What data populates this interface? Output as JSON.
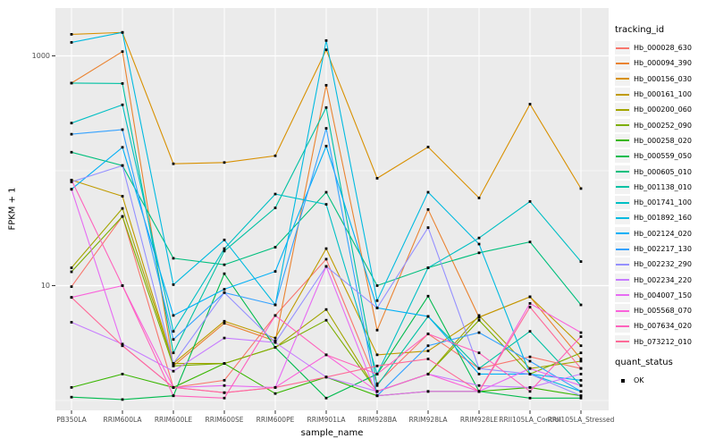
{
  "chart_data": {
    "type": "line",
    "xlabel": "sample_name",
    "ylabel": "FPKM + 1",
    "y_scale": "log10",
    "ylim": [
      0.82,
      2300
    ],
    "grid": true,
    "panel_bg": "#EBEBEB",
    "grid_color": "#FFFFFF",
    "point_color": "#000000",
    "y_ticks": [
      {
        "label": "1000",
        "value": 1000
      },
      {
        "label": "10",
        "value": 10
      }
    ],
    "y_minor": [
      100,
      1
    ],
    "categories": [
      "PB350LA",
      "RRIM600LA",
      "RRIM600LE",
      "RRIM600SE",
      "RRIM600PE",
      "RRIM901LA",
      "RRIM928BA",
      "RRIM928LA",
      "RRIM928LE",
      "RRII105LA_Control",
      "RRII105LA_Stressed"
    ],
    "legend": {
      "title": "tracking_id",
      "position": "right"
    },
    "legend2": {
      "title": "quant_status",
      "items": [
        {
          "label": "OK",
          "key": "black-square"
        }
      ]
    },
    "series": [
      {
        "name": "Hb_000028_630",
        "color": "#F8766D",
        "values": [
          9.8,
          40,
          1.3,
          1.5,
          5.5,
          17,
          1.4,
          3.8,
          1.9,
          2.4,
          1.9
        ]
      },
      {
        "name": "Hb_000094_390",
        "color": "#EA8331",
        "values": [
          580,
          1090,
          2.0,
          4.7,
          3.3,
          555,
          4.1,
          46,
          5.3,
          8.0,
          2.3
        ]
      },
      {
        "name": "Hb_000156_030",
        "color": "#D89000",
        "values": [
          1540,
          1600,
          115,
          118,
          135,
          1130,
          86,
          161,
          58,
          380,
          70
        ]
      },
      {
        "name": "Hb_000161_100",
        "color": "#C09B00",
        "values": [
          83,
          60,
          2.1,
          4.9,
          3.5,
          21,
          2.5,
          2.7,
          5.3,
          8.0,
          3.0
        ]
      },
      {
        "name": "Hb_000200_060",
        "color": "#A3A500",
        "values": [
          14.3,
          47,
          2.1,
          2.1,
          2.9,
          6.2,
          1.2,
          1.7,
          5.5,
          1.9,
          2.2
        ]
      },
      {
        "name": "Hb_000252_090",
        "color": "#7CAE00",
        "values": [
          13.2,
          40,
          2.0,
          2.1,
          2.9,
          5.0,
          1.2,
          1.7,
          5.0,
          1.7,
          2.6
        ]
      },
      {
        "name": "Hb_000258_020",
        "color": "#39B600",
        "values": [
          1.3,
          1.7,
          1.3,
          2.1,
          1.15,
          1.6,
          1.1,
          1.2,
          1.2,
          1.3,
          1.1
        ]
      },
      {
        "name": "Hb_000559_050",
        "color": "#00BB4E",
        "values": [
          1.07,
          1.02,
          1.1,
          12.7,
          2.9,
          1.05,
          1.7,
          8.1,
          1.2,
          1.05,
          1.05
        ]
      },
      {
        "name": "Hb_000605_010",
        "color": "#00BF7D",
        "values": [
          145,
          111,
          17.3,
          15.2,
          21.6,
          65,
          10,
          14.3,
          19.3,
          24,
          6.8
        ]
      },
      {
        "name": "Hb_001138_010",
        "color": "#00C1A3",
        "values": [
          580,
          575,
          2.6,
          20,
          47.5,
          355,
          1.35,
          5.4,
          1.9,
          4.0,
          1.35
        ]
      },
      {
        "name": "Hb_001741_100",
        "color": "#00BFC4",
        "values": [
          260,
          375,
          4.0,
          21,
          62.7,
          51,
          1.7,
          14.3,
          26,
          54,
          16.2
        ]
      },
      {
        "name": "Hb_001892_160",
        "color": "#00BAE0",
        "values": [
          1310,
          1600,
          10.2,
          25,
          6.8,
          1360,
          7.4,
          65,
          23,
          1.7,
          1.2
        ]
      },
      {
        "name": "Hb_002124_020",
        "color": "#00B0F6",
        "values": [
          69,
          160,
          5.5,
          9.3,
          13.3,
          164,
          6.4,
          5.4,
          1.7,
          1.7,
          1.5
        ]
      },
      {
        "name": "Hb_002217_130",
        "color": "#35A2FF",
        "values": [
          208,
          228,
          3.4,
          8.7,
          6.8,
          234,
          1.1,
          3.0,
          3.9,
          2.2,
          1.2
        ]
      },
      {
        "name": "Hb_002232_290",
        "color": "#9590FF",
        "values": [
          80,
          111,
          2.1,
          8.7,
          3.2,
          14.7,
          6.4,
          32,
          1.9,
          1.7,
          1.1
        ]
      },
      {
        "name": "Hb_002234_220",
        "color": "#C77CFF",
        "values": [
          4.8,
          3.1,
          1.8,
          3.5,
          3.2,
          1.6,
          1.2,
          1.7,
          1.35,
          1.3,
          1.7
        ]
      },
      {
        "name": "Hb_004007_150",
        "color": "#E76BF3",
        "values": [
          69,
          3.0,
          1.3,
          1.35,
          1.3,
          14.7,
          1.1,
          1.2,
          1.2,
          1.9,
          1.35
        ]
      },
      {
        "name": "Hb_005568_070",
        "color": "#FA62DB",
        "values": [
          7.9,
          10,
          1.3,
          1.17,
          1.3,
          2.5,
          1.2,
          1.7,
          1.2,
          7.0,
          3.9
        ]
      },
      {
        "name": "Hb_007634_020",
        "color": "#FF62BC",
        "values": [
          83,
          10,
          1.1,
          1.05,
          5.5,
          2.5,
          1.7,
          3.8,
          2.6,
          1.2,
          3.6
        ]
      },
      {
        "name": "Hb_073212_010",
        "color": "#FF6A98",
        "values": [
          7.9,
          3.0,
          1.3,
          1.17,
          1.3,
          1.6,
          2.0,
          2.3,
          1.2,
          6.5,
          1.9
        ]
      }
    ]
  }
}
